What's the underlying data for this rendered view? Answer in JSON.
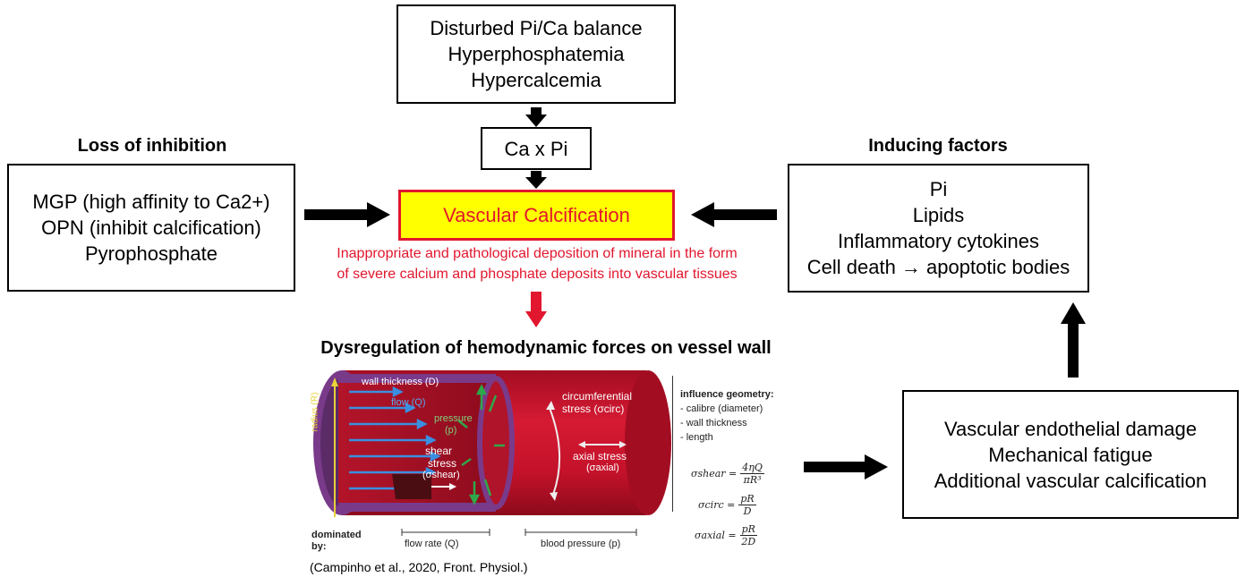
{
  "top_box": {
    "lines": [
      "Disturbed Pi/Ca balance",
      "Hyperphosphatemia",
      "Hypercalcemia"
    ]
  },
  "product_box": {
    "label": "Ca x Pi"
  },
  "center_box": {
    "label": "Vascular Calcification",
    "fill": "#ffff00",
    "border": "#e2162e",
    "text_color": "#e2162e"
  },
  "center_caption": {
    "lines": [
      "Inappropriate and pathological deposition of mineral in the form",
      "of severe calcium and phosphate deposits into vascular tissues"
    ]
  },
  "left": {
    "heading": "Loss of inhibition",
    "lines": [
      "MGP (high affinity to Ca2+)",
      "OPN (inhibit calcification)",
      "Pyrophosphate"
    ]
  },
  "right": {
    "heading": "Inducing factors",
    "lines": [
      "Pi",
      "Lipids",
      "Inflammatory cytokines",
      "Cell death → apoptotic bodies"
    ]
  },
  "hemo": {
    "heading": "Dysregulation of hemodynamic forces on vessel wall",
    "labels": {
      "wall_thickness": "wall thickness (D)",
      "flow": "flow (Q)",
      "radius": "radius (R)",
      "pressure": "pressure",
      "pressure_sym": "(p)",
      "shear": "shear",
      "stress": "stress",
      "shear_sym": "(σshear)",
      "circ": "circumferential",
      "circ_stress": "stress (σcirc)",
      "axial": "axial stress",
      "axial_sym": "(σaxial)"
    },
    "influence": {
      "title": "influence geometry:",
      "items": [
        "- calibre (diameter)",
        "- wall thickness",
        "- length"
      ]
    },
    "formulas": [
      {
        "lhs": "σshear =",
        "num": "4ηQ",
        "den": "πR³"
      },
      {
        "lhs": "σcirc =",
        "num": "pR",
        "den": "D"
      },
      {
        "lhs": "σaxial =",
        "num": "pR",
        "den": "2D"
      }
    ],
    "dominated": "dominated by:",
    "flow_rate": "flow rate (Q)",
    "blood_pressure": "blood pressure (p)",
    "citation": "(Campinho et al., 2020, Front. Physiol.)"
  },
  "bottom_right_box": {
    "lines": [
      "Vascular endothelial damage",
      "Mechanical fatigue",
      "Additional vascular calcification"
    ]
  },
  "colors": {
    "arrow": "#000000",
    "red_arrow": "#e2162e",
    "vessel": "#c4122a",
    "vessel_dark": "#8f0c1e",
    "wall": "#7a3a8a"
  }
}
